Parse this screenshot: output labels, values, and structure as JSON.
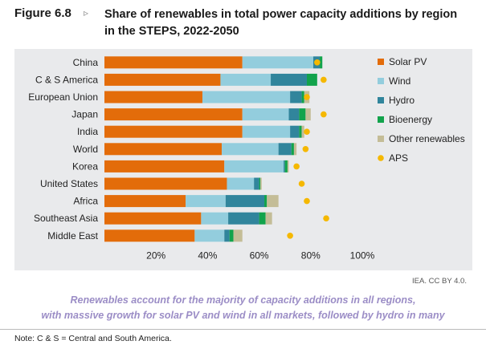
{
  "figure": {
    "label": "Figure 6.8",
    "arrow": "▹",
    "title": "Share of renewables in total power capacity additions by region in the STEPS, 2022-2050"
  },
  "source": "IEA. CC BY 4.0.",
  "caption": {
    "line1": "Renewables account for the majority of capacity additions in all regions,",
    "line2": "with massive growth for solar PV and wind in all markets, followed by hydro in many"
  },
  "note": "Note: C & S = Central and South America.",
  "chart_data": {
    "type": "bar",
    "orientation": "horizontal",
    "stacked": true,
    "categories": [
      "China",
      "C & S America",
      "European Union",
      "Japan",
      "India",
      "World",
      "Korea",
      "United States",
      "Africa",
      "Southeast Asia",
      "Middle East"
    ],
    "series": [
      {
        "name": "Solar PV",
        "color": "#e36c0a",
        "values": [
          53.5,
          45,
          38,
          53.5,
          53.5,
          45.5,
          46.5,
          47.5,
          31.5,
          37.5,
          35
        ]
      },
      {
        "name": "Wind",
        "color": "#93cddd",
        "values": [
          27.5,
          19.5,
          34,
          18,
          18.5,
          22,
          23,
          10.5,
          15.5,
          10.5,
          11.5
        ]
      },
      {
        "name": "Hydro",
        "color": "#31859c",
        "values": [
          2.5,
          14,
          4.5,
          4,
          3.5,
          5,
          0.5,
          2,
          15,
          12,
          2
        ]
      },
      {
        "name": "Bioenergy",
        "color": "#12a34c",
        "values": [
          1,
          4,
          1,
          2.5,
          1,
          1,
          1,
          0.5,
          1,
          2.5,
          1.5
        ]
      },
      {
        "name": "Other renewables",
        "color": "#c4bd97",
        "values": [
          0,
          0,
          2,
          2,
          1,
          1,
          0.5,
          0.5,
          4.5,
          2.5,
          3.5
        ]
      }
    ],
    "aps": {
      "name": "APS",
      "color": "#f5b800",
      "values": [
        82.5,
        85,
        78.5,
        85,
        78.5,
        78,
        74.5,
        76.5,
        78.5,
        86,
        72
      ]
    },
    "xaxis": {
      "ticks": [
        "20%",
        "40%",
        "60%",
        "80%",
        "100%"
      ],
      "tick_values": [
        20,
        40,
        60,
        80,
        100
      ],
      "range": [
        0,
        100
      ]
    },
    "legend_position": "right"
  }
}
